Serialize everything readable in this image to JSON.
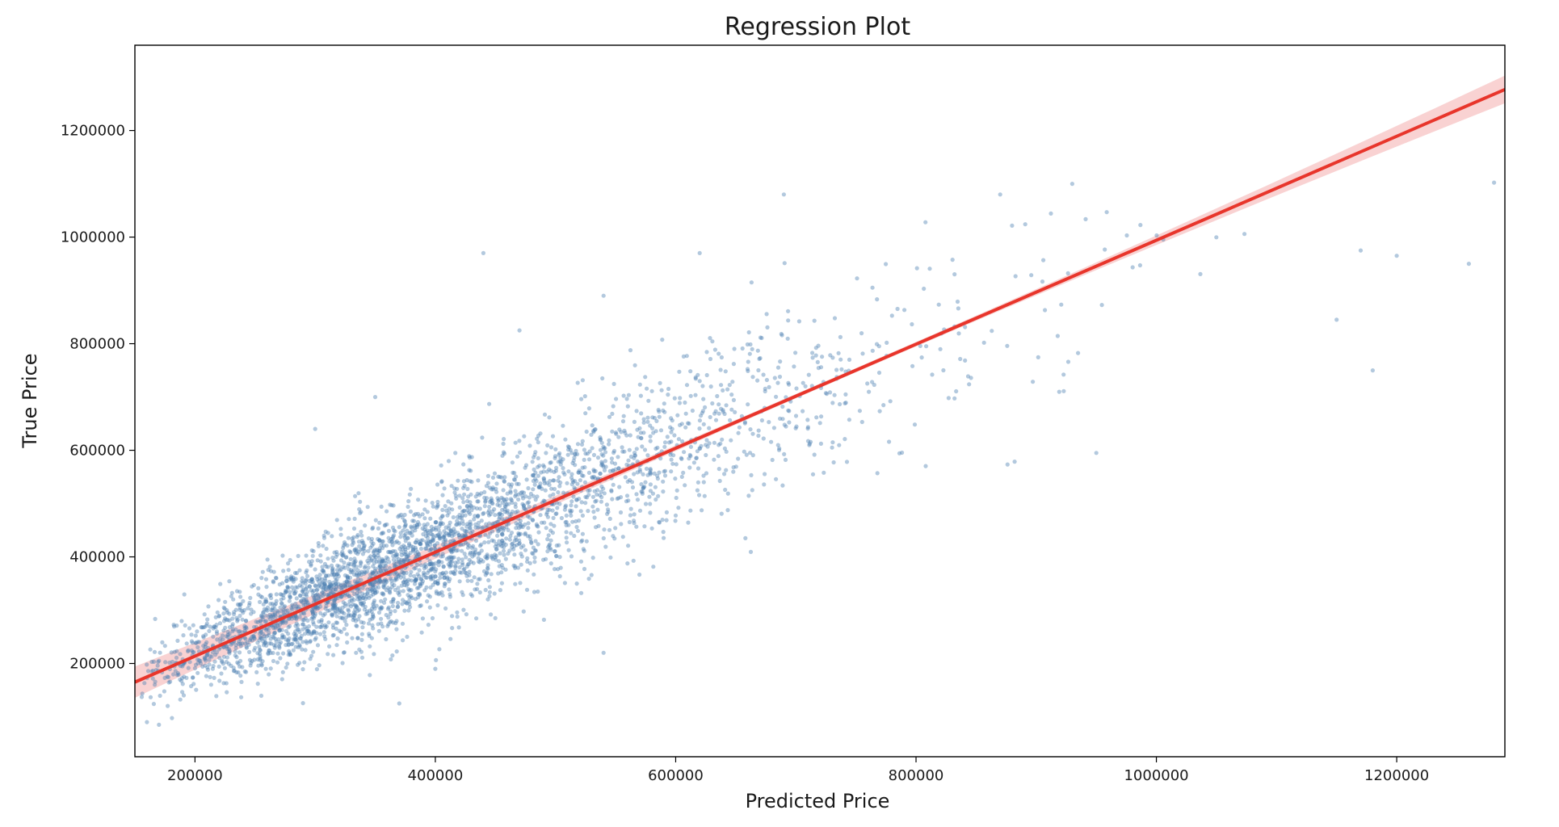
{
  "chart_data": {
    "type": "scatter",
    "title": "Regression Plot",
    "xlabel": "Predicted Price",
    "ylabel": "True Price",
    "xlim": [
      150000,
      1290000
    ],
    "ylim": [
      25000,
      1360000
    ],
    "xticks": [
      200000,
      400000,
      600000,
      800000,
      1000000,
      1200000
    ],
    "xtick_labels": [
      "200000",
      "400000",
      "600000",
      "800000",
      "1000000",
      "1200000"
    ],
    "yticks": [
      200000,
      400000,
      600000,
      800000,
      1000000,
      1200000
    ],
    "ytick_labels": [
      "200000",
      "400000",
      "600000",
      "800000",
      "1000000",
      "1200000"
    ],
    "grid": false,
    "point_count": 3400,
    "point_color": "#4a7fb0",
    "regression_color": "#e8352b",
    "regression_line": {
      "x": [
        150000,
        1290000
      ],
      "y": [
        165000,
        1277000
      ]
    },
    "outliers": [
      [
        440000,
        970000
      ],
      [
        690000,
        1080000
      ],
      [
        620000,
        970000
      ],
      [
        470000,
        825000
      ],
      [
        540000,
        890000
      ],
      [
        1170000,
        975000
      ],
      [
        1260000,
        950000
      ],
      [
        1200000,
        965000
      ],
      [
        950000,
        595000
      ],
      [
        300000,
        640000
      ],
      [
        350000,
        700000
      ],
      [
        160000,
        90000
      ],
      [
        170000,
        85000
      ],
      [
        370000,
        125000
      ],
      [
        540000,
        220000
      ],
      [
        400000,
        190000
      ],
      [
        1150000,
        845000
      ],
      [
        1180000,
        750000
      ],
      [
        930000,
        1100000
      ],
      [
        870000,
        1080000
      ]
    ]
  }
}
